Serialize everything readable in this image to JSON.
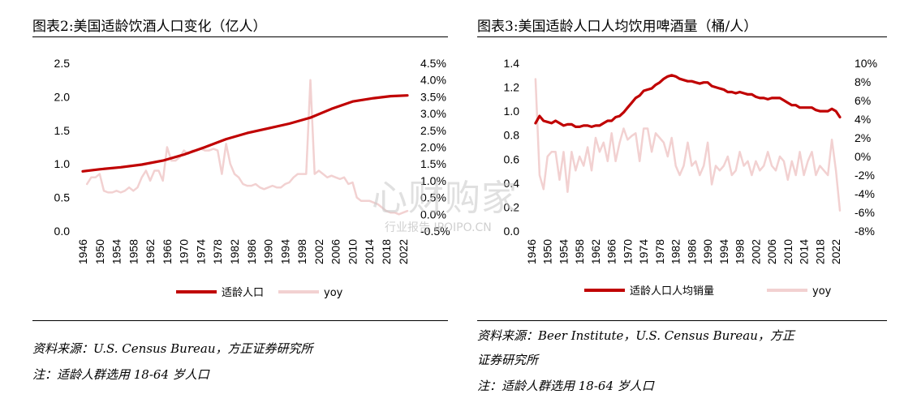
{
  "left": {
    "title": "图表2:美国适龄饮酒人口变化（亿人）",
    "source": "资料来源：U.S. Census Bureau，方正证券研究所",
    "note": "注：适龄人群选用 18-64 岁人口"
  },
  "right": {
    "title": "图表3:美国适龄人口人均饮用啤酒量（桶/人）",
    "source_line1": "资料来源：Beer Institute，U.S. Census Bureau，方正",
    "source_line2": "证券研究所",
    "note": "注：适龄人群选用 18-64 岁人口"
  },
  "watermark": {
    "main": "心财购家",
    "sub": "行业报告 IPOIPO.CN"
  },
  "colors": {
    "primary": "#c00000",
    "secondary": "#f2d1d1",
    "rule": "#000000"
  },
  "chart_data": [
    {
      "type": "line",
      "x_start": 1946,
      "x_end": 2023,
      "x_tick_labels": [
        "1946",
        "1950",
        "1954",
        "1958",
        "1962",
        "1966",
        "1970",
        "1974",
        "1978",
        "1982",
        "1986",
        "1990",
        "1994",
        "1998",
        "2002",
        "2006",
        "2010",
        "2014",
        "2018",
        "2022"
      ],
      "left_axis": {
        "ylim": [
          0,
          2.5
        ],
        "ticks": [
          "0.0",
          "0.5",
          "1.0",
          "1.5",
          "2.0",
          "2.5"
        ]
      },
      "right_axis": {
        "ylim": [
          -0.5,
          4.5
        ],
        "ticks": [
          "-0.5%",
          "0.0%",
          "0.5%",
          "1.0%",
          "1.5%",
          "2.0%",
          "2.5%",
          "3.0%",
          "3.5%",
          "4.0%",
          "4.5%"
        ]
      },
      "legend": {
        "position": "bottom",
        "labels": [
          "适龄人口",
          "yoy"
        ]
      },
      "series": [
        {
          "name": "适龄人口",
          "axis": "left",
          "points": [
            [
              1946,
              0.89
            ],
            [
              1950,
              0.92
            ],
            [
              1955,
              0.95
            ],
            [
              1960,
              0.99
            ],
            [
              1965,
              1.05
            ],
            [
              1970,
              1.14
            ],
            [
              1975,
              1.25
            ],
            [
              1980,
              1.37
            ],
            [
              1985,
              1.46
            ],
            [
              1990,
              1.53
            ],
            [
              1995,
              1.6
            ],
            [
              2000,
              1.69
            ],
            [
              2005,
              1.82
            ],
            [
              2010,
              1.93
            ],
            [
              2015,
              1.98
            ],
            [
              2019,
              2.01
            ],
            [
              2023,
              2.02
            ]
          ]
        },
        {
          "name": "yoy",
          "axis": "right",
          "points": [
            [
              1947,
              0.9
            ],
            [
              1948,
              1.1
            ],
            [
              1949,
              1.1
            ],
            [
              1950,
              1.2
            ],
            [
              1951,
              0.7
            ],
            [
              1952,
              0.65
            ],
            [
              1953,
              0.65
            ],
            [
              1954,
              0.7
            ],
            [
              1955,
              0.65
            ],
            [
              1956,
              0.7
            ],
            [
              1957,
              0.8
            ],
            [
              1958,
              0.7
            ],
            [
              1959,
              0.8
            ],
            [
              1960,
              1.1
            ],
            [
              1961,
              1.3
            ],
            [
              1962,
              1.0
            ],
            [
              1963,
              1.3
            ],
            [
              1964,
              1.3
            ],
            [
              1965,
              1.0
            ],
            [
              1966,
              2.0
            ],
            [
              1967,
              1.6
            ],
            [
              1968,
              1.6
            ],
            [
              1969,
              1.7
            ],
            [
              1970,
              1.9
            ],
            [
              1971,
              1.8
            ],
            [
              1972,
              1.9
            ],
            [
              1973,
              1.9
            ],
            [
              1974,
              1.95
            ],
            [
              1975,
              1.9
            ],
            [
              1976,
              1.9
            ],
            [
              1977,
              1.95
            ],
            [
              1978,
              1.9
            ],
            [
              1979,
              1.2
            ],
            [
              1980,
              2.1
            ],
            [
              1981,
              1.5
            ],
            [
              1982,
              1.2
            ],
            [
              1983,
              1.1
            ],
            [
              1984,
              0.9
            ],
            [
              1985,
              0.85
            ],
            [
              1986,
              0.85
            ],
            [
              1987,
              0.9
            ],
            [
              1988,
              0.8
            ],
            [
              1989,
              0.75
            ],
            [
              1990,
              0.8
            ],
            [
              1991,
              0.85
            ],
            [
              1992,
              0.8
            ],
            [
              1993,
              0.8
            ],
            [
              1994,
              0.9
            ],
            [
              1995,
              0.95
            ],
            [
              1996,
              1.1
            ],
            [
              1997,
              1.2
            ],
            [
              1998,
              1.2
            ],
            [
              1999,
              1.2
            ],
            [
              2000,
              4.0
            ],
            [
              2001,
              1.2
            ],
            [
              2002,
              1.3
            ],
            [
              2003,
              1.2
            ],
            [
              2004,
              1.1
            ],
            [
              2005,
              1.15
            ],
            [
              2006,
              1.1
            ],
            [
              2007,
              1.05
            ],
            [
              2008,
              1.1
            ],
            [
              2009,
              0.9
            ],
            [
              2010,
              0.95
            ],
            [
              2011,
              0.5
            ],
            [
              2012,
              0.4
            ],
            [
              2013,
              0.4
            ],
            [
              2014,
              0.4
            ],
            [
              2015,
              0.35
            ],
            [
              2016,
              0.3
            ],
            [
              2017,
              0.2
            ],
            [
              2018,
              0.1
            ],
            [
              2019,
              0.05
            ],
            [
              2020,
              0.05
            ],
            [
              2021,
              0.0
            ],
            [
              2022,
              0.05
            ],
            [
              2023,
              0.1
            ]
          ]
        }
      ]
    },
    {
      "type": "line",
      "x_start": 1946,
      "x_end": 2023,
      "x_tick_labels": [
        "1946",
        "1950",
        "1954",
        "1958",
        "1962",
        "1966",
        "1970",
        "1974",
        "1978",
        "1982",
        "1986",
        "1990",
        "1994",
        "1998",
        "2002",
        "2006",
        "2010",
        "2014",
        "2018",
        "2022"
      ],
      "left_axis": {
        "ylim": [
          0,
          1.4
        ],
        "ticks": [
          "0.0",
          "0.2",
          "0.4",
          "0.6",
          "0.8",
          "1.0",
          "1.2",
          "1.4"
        ]
      },
      "right_axis": {
        "ylim": [
          -8,
          10
        ],
        "ticks": [
          "-8%",
          "-6%",
          "-4%",
          "-2%",
          "0%",
          "2%",
          "4%",
          "6%",
          "8%",
          "10%"
        ]
      },
      "legend": {
        "position": "bottom",
        "labels": [
          "适龄人口人均销量",
          "yoy"
        ]
      },
      "series": [
        {
          "name": "适龄人口人均销量",
          "axis": "left",
          "points": [
            [
              1947,
              0.9
            ],
            [
              1948,
              0.96
            ],
            [
              1949,
              0.92
            ],
            [
              1950,
              0.91
            ],
            [
              1951,
              0.9
            ],
            [
              1952,
              0.92
            ],
            [
              1953,
              0.9
            ],
            [
              1954,
              0.88
            ],
            [
              1955,
              0.89
            ],
            [
              1956,
              0.89
            ],
            [
              1957,
              0.87
            ],
            [
              1958,
              0.87
            ],
            [
              1959,
              0.88
            ],
            [
              1960,
              0.88
            ],
            [
              1961,
              0.87
            ],
            [
              1962,
              0.88
            ],
            [
              1963,
              0.88
            ],
            [
              1964,
              0.9
            ],
            [
              1965,
              0.92
            ],
            [
              1966,
              0.92
            ],
            [
              1967,
              0.95
            ],
            [
              1968,
              0.96
            ],
            [
              1969,
              0.99
            ],
            [
              1970,
              1.03
            ],
            [
              1971,
              1.07
            ],
            [
              1972,
              1.11
            ],
            [
              1973,
              1.13
            ],
            [
              1974,
              1.17
            ],
            [
              1975,
              1.18
            ],
            [
              1976,
              1.19
            ],
            [
              1977,
              1.22
            ],
            [
              1978,
              1.24
            ],
            [
              1979,
              1.27
            ],
            [
              1980,
              1.29
            ],
            [
              1981,
              1.3
            ],
            [
              1982,
              1.29
            ],
            [
              1983,
              1.27
            ],
            [
              1984,
              1.26
            ],
            [
              1985,
              1.25
            ],
            [
              1986,
              1.25
            ],
            [
              1987,
              1.24
            ],
            [
              1988,
              1.23
            ],
            [
              1989,
              1.24
            ],
            [
              1990,
              1.24
            ],
            [
              1991,
              1.21
            ],
            [
              1992,
              1.2
            ],
            [
              1993,
              1.19
            ],
            [
              1994,
              1.18
            ],
            [
              1995,
              1.16
            ],
            [
              1996,
              1.16
            ],
            [
              1997,
              1.15
            ],
            [
              1998,
              1.16
            ],
            [
              1999,
              1.15
            ],
            [
              2000,
              1.14
            ],
            [
              2001,
              1.14
            ],
            [
              2002,
              1.12
            ],
            [
              2003,
              1.11
            ],
            [
              2004,
              1.11
            ],
            [
              2005,
              1.1
            ],
            [
              2006,
              1.11
            ],
            [
              2007,
              1.11
            ],
            [
              2008,
              1.11
            ],
            [
              2009,
              1.09
            ],
            [
              2010,
              1.07
            ],
            [
              2011,
              1.05
            ],
            [
              2012,
              1.05
            ],
            [
              2013,
              1.03
            ],
            [
              2014,
              1.03
            ],
            [
              2015,
              1.03
            ],
            [
              2016,
              1.03
            ],
            [
              2017,
              1.01
            ],
            [
              2018,
              1.0
            ],
            [
              2019,
              1.0
            ],
            [
              2020,
              1.0
            ],
            [
              2021,
              1.02
            ],
            [
              2022,
              1.0
            ],
            [
              2023,
              0.95
            ]
          ]
        },
        {
          "name": "yoy",
          "axis": "right",
          "points": [
            [
              1947,
              8.3
            ],
            [
              1948,
              -2.0
            ],
            [
              1949,
              -3.5
            ],
            [
              1950,
              0.0
            ],
            [
              1951,
              0.5
            ],
            [
              1952,
              0.5
            ],
            [
              1953,
              -2.5
            ],
            [
              1954,
              0.5
            ],
            [
              1955,
              -3.8
            ],
            [
              1956,
              0.5
            ],
            [
              1957,
              -1.5
            ],
            [
              1958,
              0.0
            ],
            [
              1959,
              -1.0
            ],
            [
              1960,
              1.0
            ],
            [
              1961,
              -1.5
            ],
            [
              1962,
              2.0
            ],
            [
              1963,
              0.5
            ],
            [
              1964,
              1.5
            ],
            [
              1965,
              -0.5
            ],
            [
              1966,
              2.5
            ],
            [
              1967,
              -0.5
            ],
            [
              1968,
              1.5
            ],
            [
              1969,
              3.0
            ],
            [
              1970,
              1.8
            ],
            [
              1971,
              2.2
            ],
            [
              1972,
              2.5
            ],
            [
              1973,
              -0.5
            ],
            [
              1974,
              3.0
            ],
            [
              1975,
              3.0
            ],
            [
              1976,
              0.5
            ],
            [
              1977,
              2.5
            ],
            [
              1978,
              2.0
            ],
            [
              1979,
              1.5
            ],
            [
              1980,
              0.0
            ],
            [
              1981,
              2.0
            ],
            [
              1982,
              -1.0
            ],
            [
              1983,
              -2.0
            ],
            [
              1984,
              -1.0
            ],
            [
              1985,
              1.5
            ],
            [
              1986,
              -1.0
            ],
            [
              1987,
              -0.5
            ],
            [
              1988,
              -2.0
            ],
            [
              1989,
              -1.0
            ],
            [
              1990,
              1.5
            ],
            [
              1991,
              -3.0
            ],
            [
              1992,
              -1.0
            ],
            [
              1993,
              -1.5
            ],
            [
              1994,
              -1.0
            ],
            [
              1995,
              0.0
            ],
            [
              1996,
              -2.0
            ],
            [
              1997,
              -1.5
            ],
            [
              1998,
              0.5
            ],
            [
              1999,
              -1.0
            ],
            [
              2000,
              -0.5
            ],
            [
              2001,
              -2.0
            ],
            [
              2002,
              -0.5
            ],
            [
              2003,
              -1.5
            ],
            [
              2004,
              -1.0
            ],
            [
              2005,
              0.5
            ],
            [
              2006,
              -1.0
            ],
            [
              2007,
              -1.5
            ],
            [
              2008,
              0.0
            ],
            [
              2009,
              -0.5
            ],
            [
              2010,
              -2.5
            ],
            [
              2011,
              -0.5
            ],
            [
              2012,
              -2.0
            ],
            [
              2013,
              0.5
            ],
            [
              2014,
              -2.0
            ],
            [
              2015,
              -0.5
            ],
            [
              2016,
              0.5
            ],
            [
              2017,
              -2.0
            ],
            [
              2018,
              -1.0
            ],
            [
              2019,
              -1.5
            ],
            [
              2020,
              -2.0
            ],
            [
              2021,
              1.8
            ],
            [
              2022,
              -1.5
            ],
            [
              2023,
              -5.8
            ]
          ]
        }
      ]
    }
  ]
}
